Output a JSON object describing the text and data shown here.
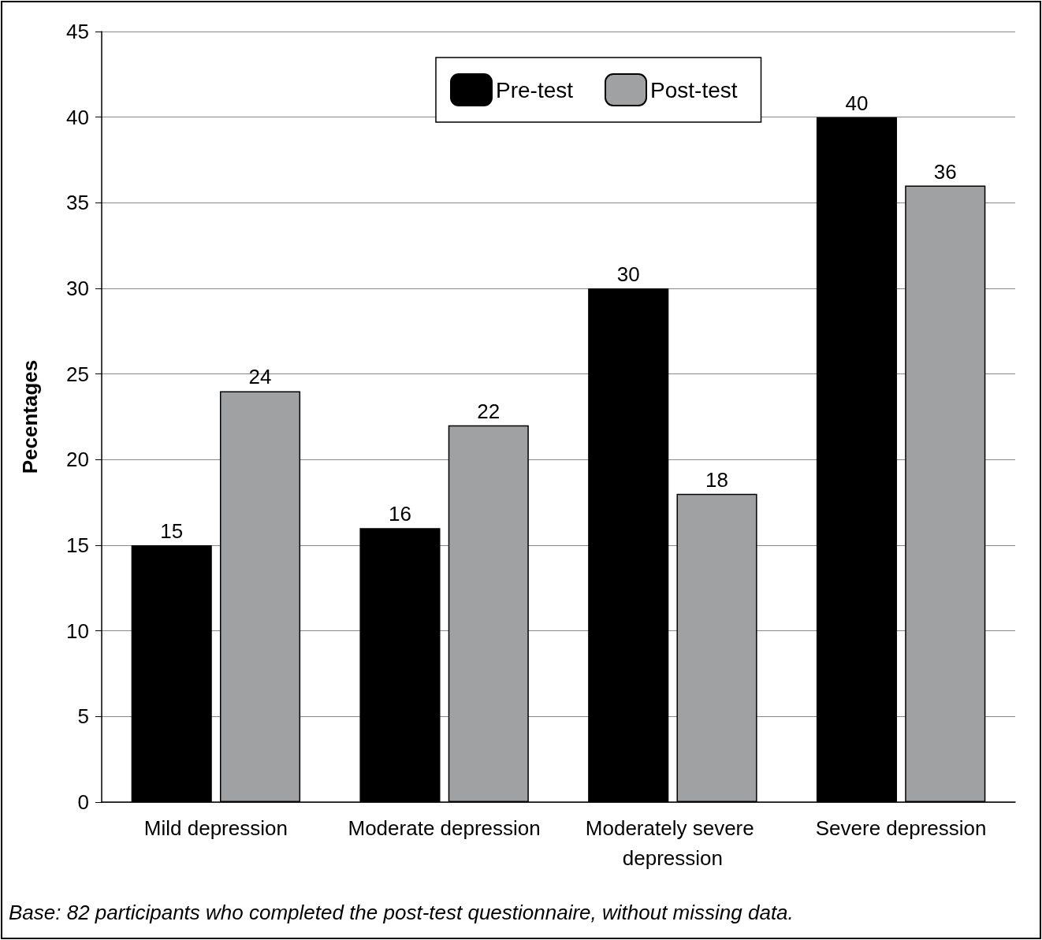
{
  "chart_data": {
    "type": "bar",
    "ylabel": "Pecentages",
    "categories": [
      "Mild depression",
      "Moderate depression",
      "Moderately severe depression",
      "Severe depression"
    ],
    "series": [
      {
        "name": "Pre-test",
        "color": "#000000",
        "values": [
          15,
          16,
          30,
          40
        ]
      },
      {
        "name": "Post-test",
        "color": "#a0a1a3",
        "values": [
          24,
          22,
          18,
          36
        ]
      }
    ],
    "ylim": [
      0,
      45
    ],
    "yticks": [
      0,
      5,
      10,
      15,
      20,
      25,
      30,
      35,
      40,
      45
    ],
    "grid": "y",
    "legend": "top",
    "data_labels": true,
    "annotations": [
      "Base: 82 participants who completed the post-test questionnaire, without missing data."
    ]
  }
}
